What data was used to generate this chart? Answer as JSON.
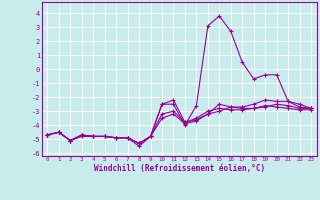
{
  "xlabel": "Windchill (Refroidissement éolien,°C)",
  "background_color": "#c8ecec",
  "grid_color": "#ffffff",
  "line_color": "#990099",
  "xlim": [
    -0.5,
    23.5
  ],
  "ylim": [
    -6.2,
    4.8
  ],
  "xticks": [
    0,
    1,
    2,
    3,
    4,
    5,
    6,
    7,
    8,
    9,
    10,
    11,
    12,
    13,
    14,
    15,
    16,
    17,
    18,
    19,
    20,
    21,
    22,
    23
  ],
  "yticks": [
    -6,
    -5,
    -4,
    -3,
    -2,
    -1,
    0,
    1,
    2,
    3,
    4
  ],
  "series": {
    "line1_x": [
      0,
      1,
      2,
      3,
      4,
      5,
      6,
      7,
      8,
      9,
      10,
      11,
      12,
      13,
      14,
      15,
      16,
      17,
      18,
      19,
      20,
      21,
      22,
      23
    ],
    "line1_y": [
      -4.7,
      -4.5,
      -5.1,
      -4.7,
      -4.8,
      -4.8,
      -4.9,
      -4.9,
      -5.3,
      -4.8,
      -2.5,
      -2.2,
      -3.8,
      -3.6,
      -3.2,
      -2.5,
      -2.7,
      -2.7,
      -2.5,
      -2.2,
      -2.3,
      -2.3,
      -2.7,
      -2.8
    ],
    "line2_x": [
      0,
      1,
      2,
      3,
      4,
      5,
      6,
      7,
      8,
      9,
      10,
      11,
      12,
      13,
      14,
      15,
      16,
      17,
      18,
      19,
      20,
      21,
      22,
      23
    ],
    "line2_y": [
      -4.7,
      -4.5,
      -5.1,
      -4.7,
      -4.8,
      -4.8,
      -4.9,
      -4.9,
      -5.5,
      -4.8,
      -2.5,
      -2.5,
      -4.0,
      -2.6,
      3.1,
      3.8,
      2.7,
      0.5,
      -0.7,
      -0.4,
      -0.4,
      -2.3,
      -2.5,
      -2.8
    ],
    "line3_x": [
      0,
      1,
      2,
      3,
      4,
      5,
      6,
      7,
      8,
      9,
      10,
      11,
      12,
      13,
      14,
      15,
      16,
      17,
      18,
      19,
      20,
      21,
      22,
      23
    ],
    "line3_y": [
      -4.7,
      -4.5,
      -5.1,
      -4.8,
      -4.8,
      -4.8,
      -4.9,
      -4.9,
      -5.3,
      -4.8,
      -3.5,
      -3.2,
      -3.9,
      -3.7,
      -3.2,
      -3.0,
      -2.7,
      -2.8,
      -2.8,
      -2.7,
      -2.5,
      -2.6,
      -2.8,
      -2.8
    ],
    "line4_x": [
      0,
      1,
      2,
      3,
      4,
      5,
      6,
      7,
      8,
      9,
      10,
      11,
      12,
      13,
      14,
      15,
      16,
      17,
      18,
      19,
      20,
      21,
      22,
      23
    ],
    "line4_y": [
      -4.7,
      -4.5,
      -5.1,
      -4.7,
      -4.8,
      -4.8,
      -4.9,
      -4.9,
      -5.3,
      -4.8,
      -3.2,
      -3.0,
      -3.8,
      -3.5,
      -3.0,
      -2.8,
      -2.9,
      -2.9,
      -2.8,
      -2.6,
      -2.7,
      -2.8,
      -2.9,
      -2.9
    ]
  }
}
